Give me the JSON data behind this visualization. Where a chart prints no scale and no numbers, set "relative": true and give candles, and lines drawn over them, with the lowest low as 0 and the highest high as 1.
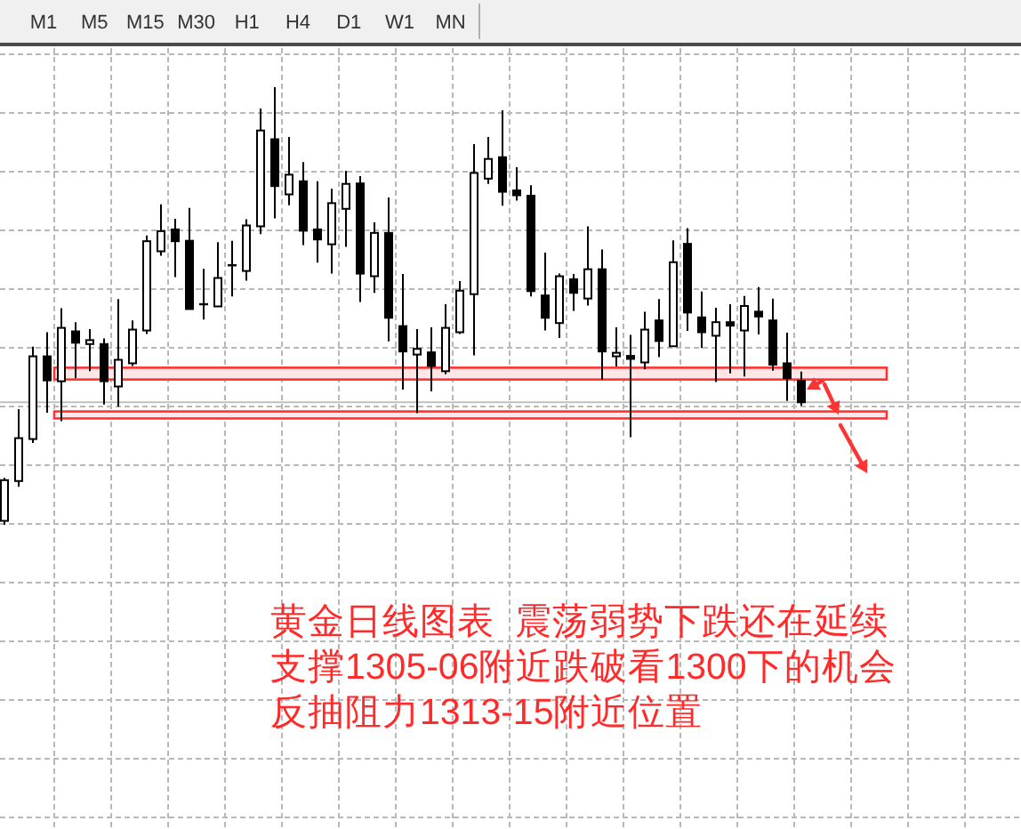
{
  "chart_data": [
    {
      "type": "other",
      "annotations": [
        "M1",
        "M5",
        "M15",
        "M30",
        "H1",
        "H4",
        "D1",
        "W1",
        "MN"
      ]
    },
    {
      "type": "candlestick",
      "relative": true,
      "color": "#000000",
      "grid": true,
      "categories": [
        null,
        null,
        null,
        null,
        null,
        null,
        null,
        null,
        null,
        null,
        null,
        null,
        null,
        null,
        null,
        null,
        null,
        null,
        null,
        null,
        null,
        null,
        null,
        null,
        null,
        null,
        null,
        null,
        null,
        null,
        null,
        null,
        null,
        null,
        null,
        null,
        null,
        null,
        null,
        null,
        null,
        null,
        null,
        null,
        null,
        null,
        null,
        null,
        null,
        null,
        null,
        null,
        null,
        null,
        null,
        null,
        null
      ],
      "ohlc": [
        [
          0.009,
          0.107,
          0,
          0.102
        ],
        [
          0.1,
          0.264,
          0.087,
          0.198
        ],
        [
          0.196,
          0.407,
          0.187,
          0.385
        ],
        [
          0.385,
          0.44,
          0.256,
          0.33
        ],
        [
          0.328,
          0.495,
          0.237,
          0.45
        ],
        [
          0.442,
          0.463,
          0.335,
          0.416
        ],
        [
          0.413,
          0.447,
          0.351,
          0.422
        ],
        [
          0.413,
          0.426,
          0.275,
          0.328
        ],
        [
          0.316,
          0.516,
          0.27,
          0.377
        ],
        [
          0.369,
          0.467,
          0.363,
          0.446
        ],
        [
          0.444,
          0.661,
          0.436,
          0.648
        ],
        [
          0.625,
          0.732,
          0.615,
          0.671
        ],
        [
          0.675,
          0.699,
          0.566,
          0.648
        ],
        [
          0.649,
          0.724,
          0.493,
          0.493
        ],
        [
          0.504,
          0.585,
          0.469,
          0.504
        ],
        [
          0.499,
          0.646,
          0.499,
          0.564
        ],
        [
          0.593,
          0.649,
          0.522,
          0.593
        ],
        [
          0.58,
          0.698,
          0.558,
          0.684
        ],
        [
          0.682,
          0.951,
          0.664,
          0.901
        ],
        [
          0.881,
          1,
          0.7,
          0.774
        ],
        [
          0.755,
          0.886,
          0.73,
          0.8
        ],
        [
          0.785,
          0.829,
          0.639,
          0.672
        ],
        [
          0.675,
          0.785,
          0.599,
          0.652
        ],
        [
          0.641,
          0.768,
          0.574,
          0.735
        ],
        [
          0.722,
          0.809,
          0.635,
          0.779
        ],
        [
          0.78,
          0.797,
          0.509,
          0.574
        ],
        [
          0.568,
          0.691,
          0.53,
          0.667
        ],
        [
          0.667,
          0.748,
          0.419,
          0.473
        ],
        [
          0.454,
          0.573,
          0.309,
          0.396
        ],
        [
          0.389,
          0.447,
          0.255,
          0.402
        ],
        [
          0.394,
          0.451,
          0.305,
          0.363
        ],
        [
          0.351,
          0.504,
          0.344,
          0.45
        ],
        [
          0.44,
          0.557,
          0.436,
          0.535
        ],
        [
          0.527,
          0.87,
          0.387,
          0.804
        ],
        [
          0.791,
          0.886,
          0.779,
          0.836
        ],
        [
          0.84,
          0.947,
          0.729,
          0.761
        ],
        [
          0.764,
          0.817,
          0.741,
          0.753
        ],
        [
          0.752,
          0.776,
          0.522,
          0.534
        ],
        [
          0.524,
          0.622,
          0.444,
          0.473
        ],
        [
          0.461,
          0.574,
          0.427,
          0.568
        ],
        [
          0.561,
          0.573,
          0.489,
          0.53
        ],
        [
          0.517,
          0.682,
          0.501,
          0.584
        ],
        [
          0.584,
          0.629,
          0.332,
          0.396
        ],
        [
          0.385,
          0.451,
          0.362,
          0.393
        ],
        [
          0.386,
          0.434,
          0.2,
          0.379
        ],
        [
          0.371,
          0.487,
          0.355,
          0.446
        ],
        [
          0.467,
          0.516,
          0.383,
          0.42
        ],
        [
          0.408,
          0.65,
          0.408,
          0.6
        ],
        [
          0.642,
          0.678,
          0.443,
          0.485
        ],
        [
          0.474,
          0.533,
          0.404,
          0.44
        ],
        [
          0.432,
          0.496,
          0.326,
          0.463
        ],
        [
          0.463,
          0.504,
          0.346,
          0.455
        ],
        [
          0.444,
          0.523,
          0.339,
          0.5
        ],
        [
          0.487,
          0.543,
          0.435,
          0.476
        ],
        [
          0.467,
          0.517,
          0.352,
          0.366
        ],
        [
          0.369,
          0.439,
          0.283,
          0.335
        ],
        [
          0.329,
          0.35,
          0.272,
          0.28
        ]
      ],
      "ref_lines": [
        {
          "axis": "y",
          "value": 0.28,
          "color": "#c0c0c0"
        }
      ],
      "bands": [
        {
          "axis": "y",
          "from": 0.332,
          "to": 0.359,
          "color": "#ff3333"
        },
        {
          "axis": "y",
          "from": 0.243,
          "to": 0.259,
          "color": "#ff3333"
        }
      ],
      "annotations": [
        "黄金日线图表  震荡弱势下跌还在延续",
        "支撑1305-06附近跌破看1300下的机会",
        "反抽阻力1313-15附近位置"
      ]
    }
  ]
}
